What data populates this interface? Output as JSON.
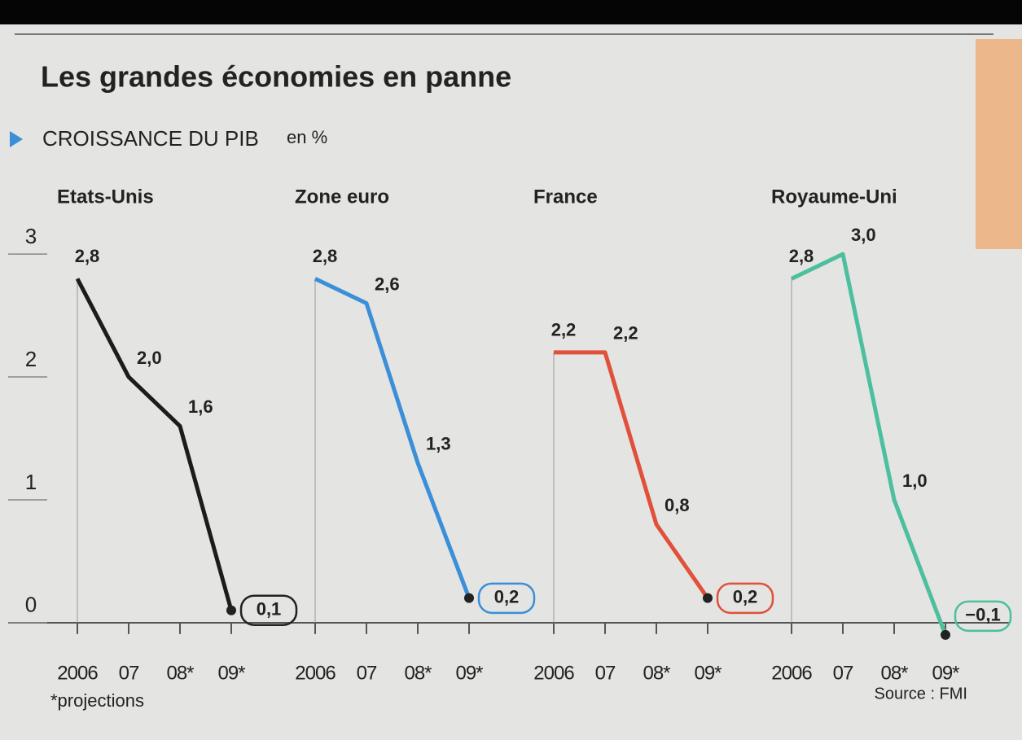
{
  "header": {
    "title": "Les grandes économies en panne",
    "subtitle": "CROISSANCE DU PIB",
    "unit": "en %"
  },
  "footer": {
    "note": "*projections",
    "source": "Source : FMI"
  },
  "chart_data": [
    {
      "type": "line",
      "title": "Etats-Unis",
      "categories": [
        "2006",
        "07",
        "08*",
        "09*"
      ],
      "values": [
        2.8,
        2.0,
        1.6,
        0.1
      ],
      "value_labels": [
        "2,8",
        "2,0",
        "1,6",
        "0,1"
      ],
      "color": "#1c1c1c",
      "ylim": [
        -0.2,
        3.2
      ],
      "yticks": [
        0,
        1,
        2,
        3
      ]
    },
    {
      "type": "line",
      "title": "Zone euro",
      "categories": [
        "2006",
        "07",
        "08*",
        "09*"
      ],
      "values": [
        2.8,
        2.6,
        1.3,
        0.2
      ],
      "value_labels": [
        "2,8",
        "2,6",
        "1,3",
        "0,2"
      ],
      "color": "#3a8fd8",
      "ylim": [
        -0.2,
        3.2
      ]
    },
    {
      "type": "line",
      "title": "France",
      "categories": [
        "2006",
        "07",
        "08*",
        "09*"
      ],
      "values": [
        2.2,
        2.2,
        0.8,
        0.2
      ],
      "value_labels": [
        "2,2",
        "2,2",
        "0,8",
        "0,2"
      ],
      "color": "#e0503a",
      "ylim": [
        -0.2,
        3.2
      ]
    },
    {
      "type": "line",
      "title": "Royaume-Uni",
      "categories": [
        "2006",
        "07",
        "08*",
        "09*"
      ],
      "values": [
        2.8,
        3.0,
        1.0,
        -0.1
      ],
      "value_labels": [
        "2,8",
        "3,0",
        "1,0",
        "−0,1"
      ],
      "color": "#4cbf9e",
      "ylim": [
        -0.2,
        3.2
      ]
    }
  ]
}
